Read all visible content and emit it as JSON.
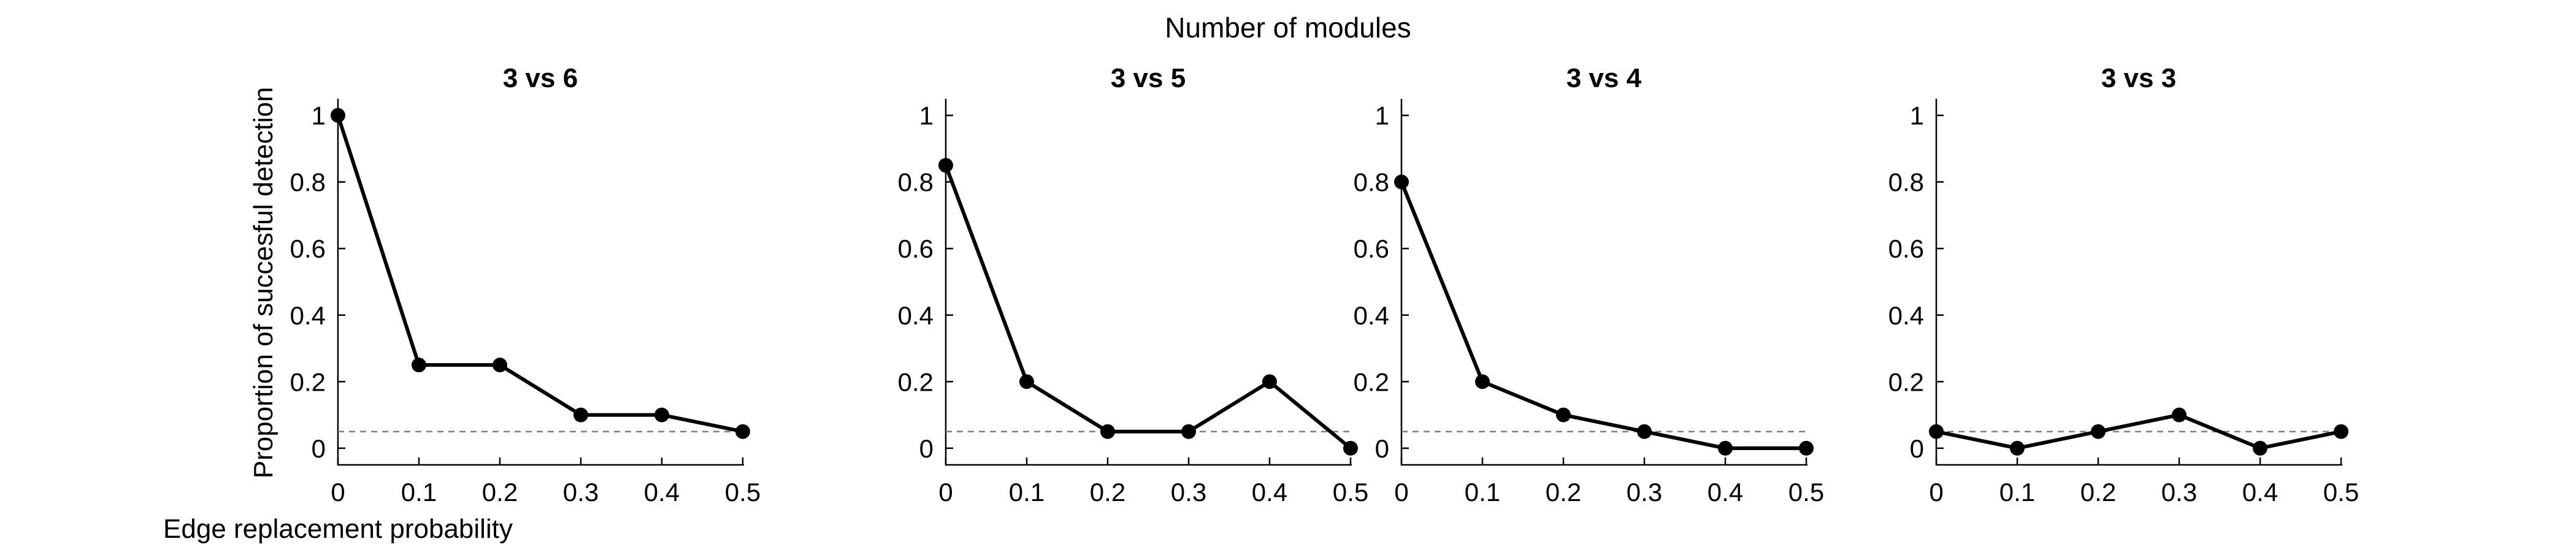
{
  "figure": {
    "suptitle": "Number of modules",
    "xlabel": "Edge replacement probability",
    "ylabel": "Proportion of succesful detection"
  },
  "chart_data": [
    {
      "type": "line",
      "title": "3 vs 6",
      "x": [
        0,
        0.1,
        0.2,
        0.3,
        0.4,
        0.5
      ],
      "y": [
        1.0,
        0.25,
        0.25,
        0.1,
        0.1,
        0.05
      ],
      "xticks": [
        "0",
        "0.1",
        "0.2",
        "0.3",
        "0.4",
        "0.5"
      ],
      "yticks": [
        "0",
        "0.2",
        "0.4",
        "0.6",
        "0.8",
        "1"
      ],
      "xlim": [
        0,
        0.5
      ],
      "ylim": [
        -0.05,
        1.05
      ],
      "reference_line": 0.05,
      "line_color": "#000000",
      "reference_color": "#808080",
      "grid": false,
      "legend": "none"
    },
    {
      "type": "line",
      "title": "3 vs 5",
      "x": [
        0,
        0.1,
        0.2,
        0.3,
        0.4,
        0.5
      ],
      "y": [
        0.85,
        0.2,
        0.05,
        0.05,
        0.2,
        0.0
      ],
      "xticks": [
        "0",
        "0.1",
        "0.2",
        "0.3",
        "0.4",
        "0.5"
      ],
      "yticks": [
        "0",
        "0.2",
        "0.4",
        "0.6",
        "0.8",
        "1"
      ],
      "xlim": [
        0,
        0.5
      ],
      "ylim": [
        -0.05,
        1.05
      ],
      "reference_line": 0.05,
      "line_color": "#000000",
      "reference_color": "#808080",
      "grid": false,
      "legend": "none"
    },
    {
      "type": "line",
      "title": "3 vs 4",
      "x": [
        0,
        0.1,
        0.2,
        0.3,
        0.4,
        0.5
      ],
      "y": [
        0.8,
        0.2,
        0.1,
        0.05,
        0.0,
        0.0
      ],
      "xticks": [
        "0",
        "0.1",
        "0.2",
        "0.3",
        "0.4",
        "0.5"
      ],
      "yticks": [
        "0",
        "0.2",
        "0.4",
        "0.6",
        "0.8",
        "1"
      ],
      "xlim": [
        0,
        0.5
      ],
      "ylim": [
        -0.05,
        1.05
      ],
      "reference_line": 0.05,
      "line_color": "#000000",
      "reference_color": "#808080",
      "grid": false,
      "legend": "none"
    },
    {
      "type": "line",
      "title": "3 vs 3",
      "x": [
        0,
        0.1,
        0.2,
        0.3,
        0.4,
        0.5
      ],
      "y": [
        0.05,
        0.0,
        0.05,
        0.1,
        0.0,
        0.05
      ],
      "xticks": [
        "0",
        "0.1",
        "0.2",
        "0.3",
        "0.4",
        "0.5"
      ],
      "yticks": [
        "0",
        "0.2",
        "0.4",
        "0.6",
        "0.8",
        "1"
      ],
      "xlim": [
        0,
        0.5
      ],
      "ylim": [
        -0.05,
        1.05
      ],
      "reference_line": 0.05,
      "line_color": "#000000",
      "reference_color": "#808080",
      "grid": false,
      "legend": "none"
    }
  ]
}
